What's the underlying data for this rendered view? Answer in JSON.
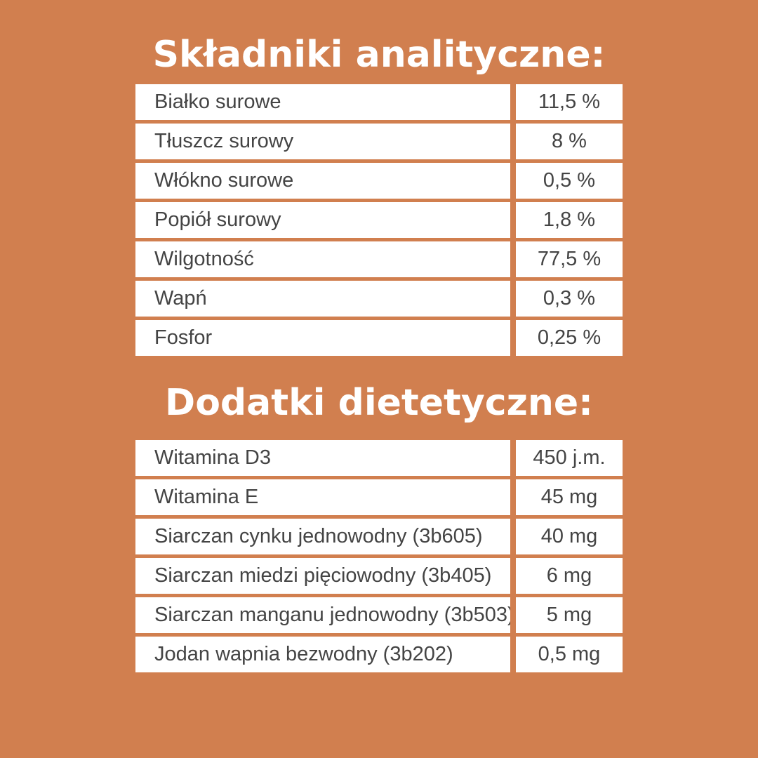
{
  "analytical": {
    "title": "Składniki analityczne:",
    "rows": [
      {
        "label": "Białko surowe",
        "value": "11,5 %"
      },
      {
        "label": "Tłuszcz surowy",
        "value": "8 %"
      },
      {
        "label": "Włókno surowe",
        "value": "0,5 %"
      },
      {
        "label": "Popiół surowy",
        "value": "1,8 %"
      },
      {
        "label": "Wilgotność",
        "value": "77,5 %"
      },
      {
        "label": "Wapń",
        "value": "0,3 %"
      },
      {
        "label": "Fosfor",
        "value": "0,25 %"
      }
    ]
  },
  "additives": {
    "title": "Dodatki dietetyczne:",
    "rows": [
      {
        "label": "Witamina D3",
        "value": "450 j.m."
      },
      {
        "label": "Witamina E",
        "value": "45 mg"
      },
      {
        "label": "Siarczan cynku jednowodny (3b605)",
        "value": "40 mg"
      },
      {
        "label": "Siarczan miedzi pięciowodny (3b405)",
        "value": "6 mg"
      },
      {
        "label": "Siarczan manganu jednowodny (3b503)",
        "value": "5 mg"
      },
      {
        "label": "Jodan wapnia bezwodny (3b202)",
        "value": "0,5 mg"
      }
    ]
  },
  "colors": {
    "background": "#D17F4F",
    "cell_background": "#FFFFFF",
    "text": "#444444",
    "title": "#FFFFFF"
  }
}
